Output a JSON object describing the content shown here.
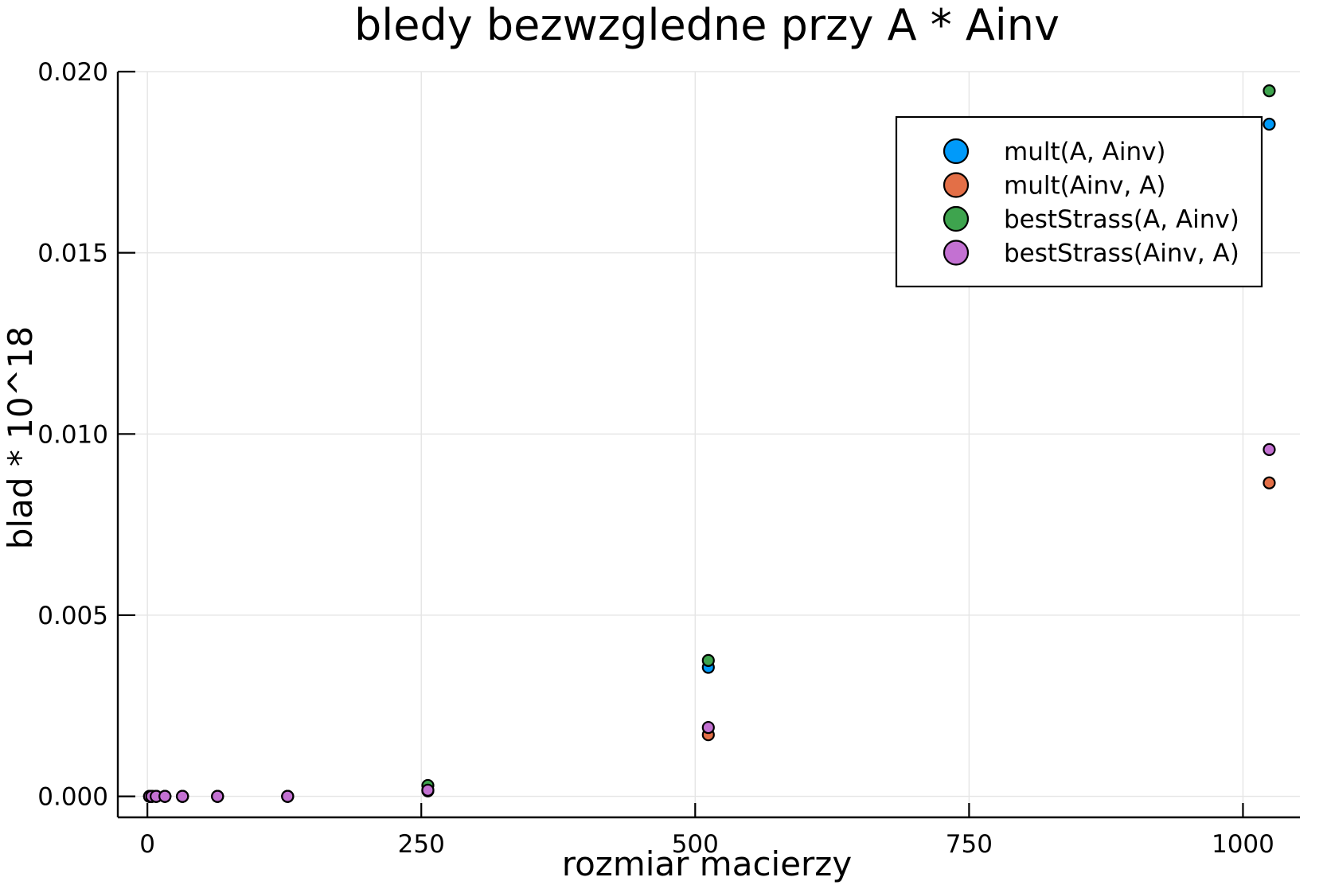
{
  "chart_data": {
    "type": "scatter",
    "title": "bledy bezwzgledne przy A * Ainv",
    "xlabel": "rozmiar macierzy",
    "ylabel": "blad * 10^18",
    "xlim": [
      -27,
      1052
    ],
    "ylim": [
      -0.00058,
      0.02
    ],
    "xticks": [
      0,
      250,
      500,
      750,
      1000
    ],
    "xtick_labels": [
      "0",
      "250",
      "500",
      "750",
      "1000"
    ],
    "yticks": [
      0.0,
      0.005,
      0.01,
      0.015,
      0.02
    ],
    "ytick_labels": [
      "0.000",
      "0.005",
      "0.010",
      "0.015",
      "0.020"
    ],
    "grid": true,
    "legend_position": "top-right",
    "series": [
      {
        "name": "mult(A, Ainv)",
        "color": "#009AFA",
        "x": [
          2,
          4,
          8,
          16,
          32,
          64,
          128,
          256,
          512,
          1024
        ],
        "y": [
          0.0,
          0.0,
          0.0,
          0.0,
          0.0,
          0.0,
          0.0,
          0.00017,
          0.00356,
          0.01855
        ]
      },
      {
        "name": "mult(Ainv, A)",
        "color": "#E36F47",
        "x": [
          2,
          4,
          8,
          16,
          32,
          64,
          128,
          256,
          512,
          1024
        ],
        "y": [
          0.0,
          0.0,
          0.0,
          0.0,
          0.0,
          0.0,
          0.0,
          0.00015,
          0.0017,
          0.00865
        ]
      },
      {
        "name": "bestStrass(A, Ainv)",
        "color": "#3EA44E",
        "x": [
          2,
          4,
          8,
          16,
          32,
          64,
          128,
          256,
          512,
          1024
        ],
        "y": [
          0.0,
          0.0,
          0.0,
          0.0,
          0.0,
          0.0,
          0.0,
          0.0003,
          0.00375,
          0.01947
        ]
      },
      {
        "name": "bestStrass(Ainv, A)",
        "color": "#C371D2",
        "x": [
          2,
          4,
          8,
          16,
          32,
          64,
          128,
          256,
          512,
          1024
        ],
        "y": [
          0.0,
          0.0,
          0.0,
          0.0,
          0.0,
          0.0,
          0.0,
          0.00017,
          0.0019,
          0.00957
        ]
      }
    ]
  }
}
